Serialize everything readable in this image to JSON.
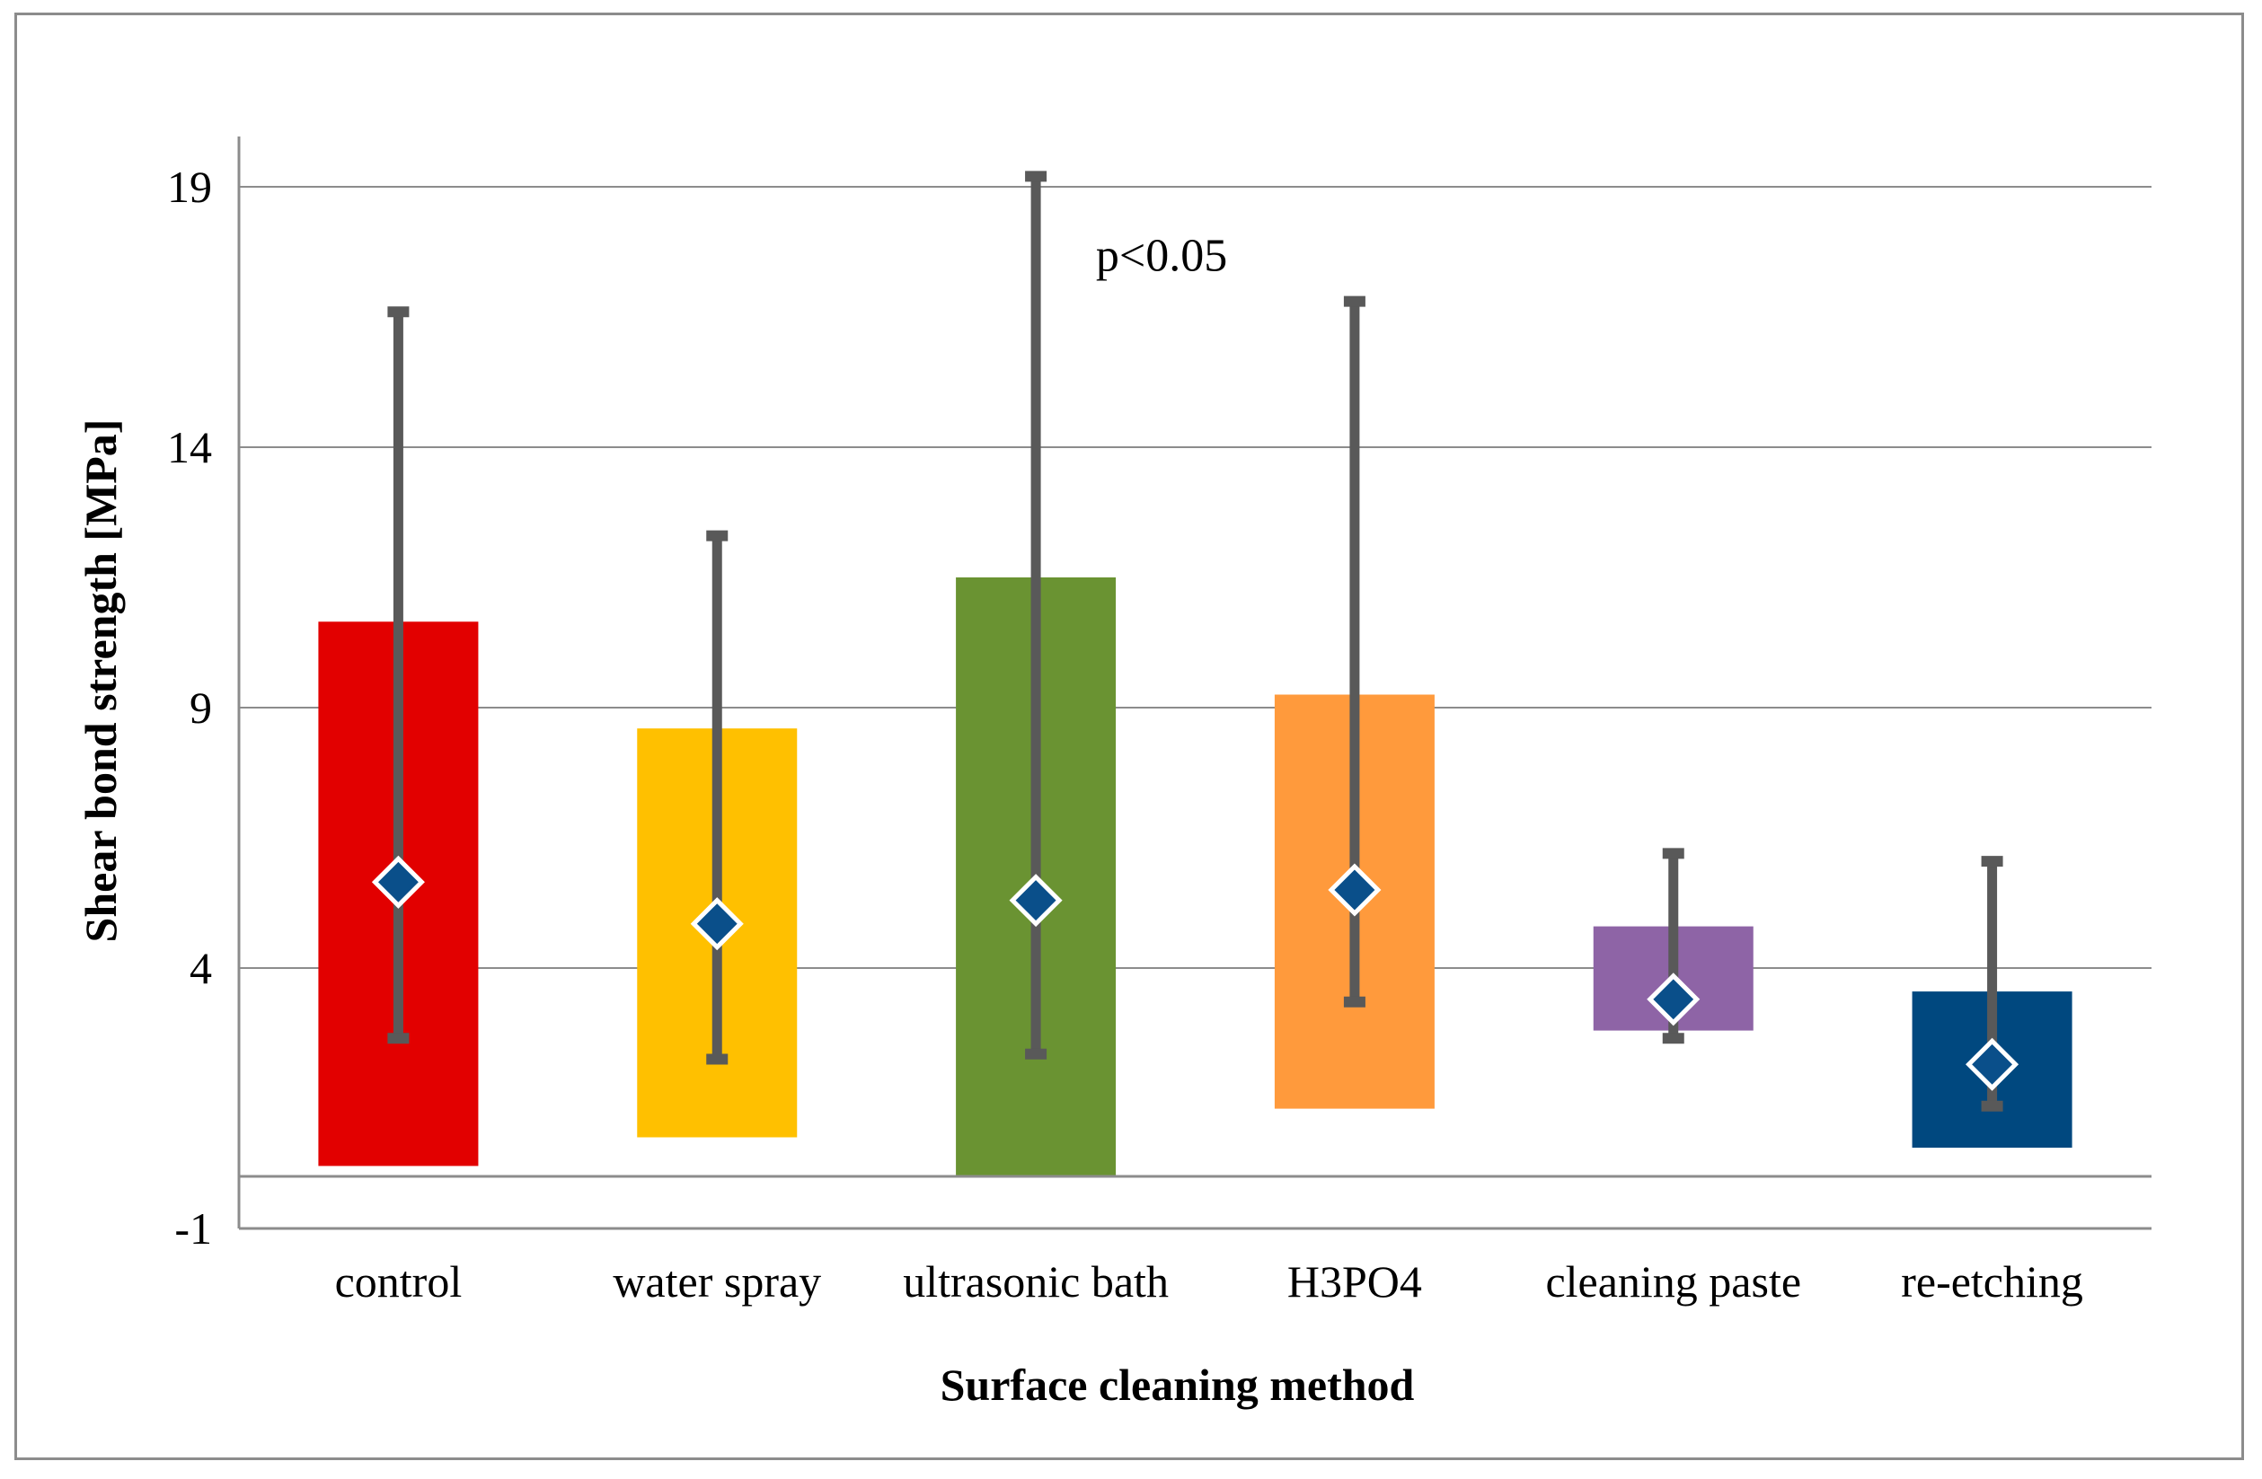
{
  "chart_data": {
    "type": "bar",
    "title": "",
    "xlabel": "Surface cleaning method",
    "ylabel": "Shear bond strength [MPa]",
    "ylim": [
      -1,
      20
    ],
    "yticks": [
      -1,
      4,
      9,
      14,
      19
    ],
    "grid": true,
    "categories": [
      "control",
      "water spray",
      "ultrasonic bath",
      "H3PO4",
      "cleaning paste",
      "re-etching"
    ],
    "bar_low": [
      0.2,
      0.75,
      0.0,
      1.3,
      2.8,
      0.55
    ],
    "bar_high": [
      10.65,
      8.6,
      11.5,
      9.25,
      4.8,
      3.55
    ],
    "mean": [
      5.65,
      4.85,
      5.3,
      5.5,
      3.4,
      2.15
    ],
    "whisker_min": [
      2.65,
      2.25,
      2.35,
      3.35,
      2.65,
      1.35
    ],
    "whisker_max": [
      16.6,
      12.3,
      19.2,
      16.8,
      6.2,
      6.05
    ],
    "colors": [
      "#e20000",
      "#ffc000",
      "#6a9332",
      "#ff9a3c",
      "#8e64a6",
      "#00487f"
    ],
    "mean_marker_color": "#0a4f8a",
    "whisker_color": "#595959",
    "annotation": {
      "text": "p<0.05",
      "near_category": "ultrasonic bath",
      "y": 17.7
    }
  }
}
